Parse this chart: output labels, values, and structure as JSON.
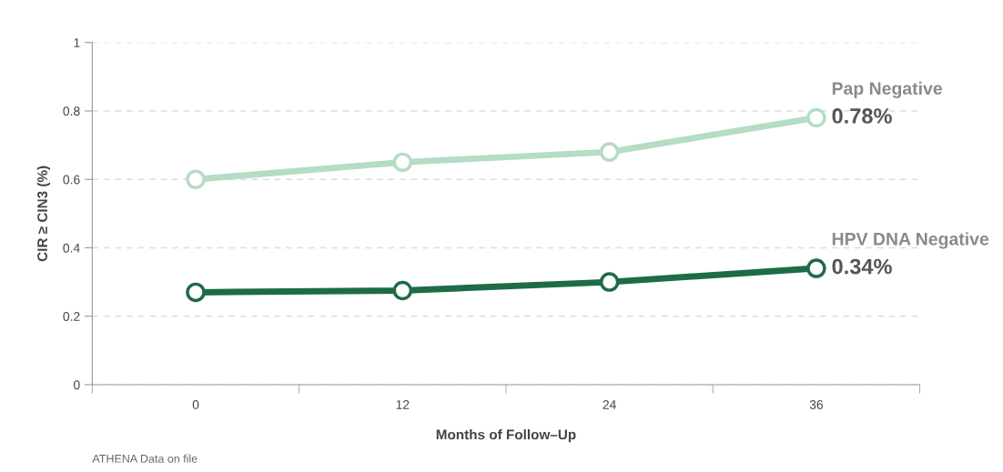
{
  "chart_data": {
    "type": "line",
    "xlabel": "Months of Follow–Up",
    "ylabel": "CIR ≥ CIN3 (%)",
    "categories": [
      "0",
      "12",
      "24",
      "36"
    ],
    "series": [
      {
        "name": "Pap Negative",
        "color": "#b5dcc4",
        "values": [
          0.6,
          0.65,
          0.68,
          0.78
        ],
        "value_labels": [
          null,
          null,
          null,
          "0.78%"
        ]
      },
      {
        "name": "HPV DNA Negative",
        "color": "#1e6b47",
        "values": [
          0.27,
          0.275,
          0.3,
          0.34
        ],
        "value_labels": [
          null,
          null,
          null,
          "0.34%"
        ]
      }
    ],
    "ylim": [
      0,
      1
    ],
    "yticks": [
      0,
      0.2,
      0.4,
      0.6,
      0.8,
      1
    ],
    "grid": "y",
    "marker": "circle",
    "line_style": "solid",
    "legend": false,
    "annotations": [
      "ATHENA Data on file"
    ]
  }
}
